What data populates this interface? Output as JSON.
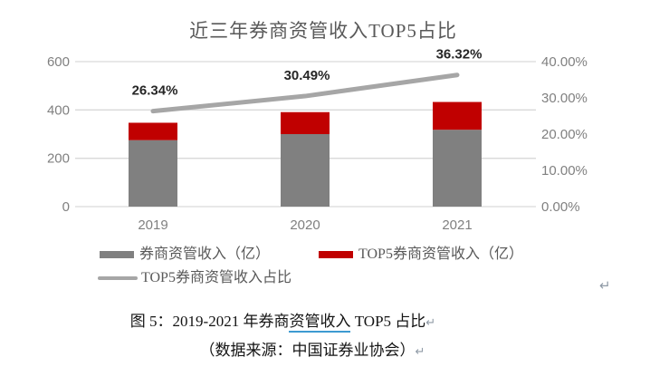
{
  "chart_data": {
    "type": "bar",
    "subtype": "stacked-bars-with-line-combo",
    "title": "近三年券商资管收入TOP5占比",
    "categories": [
      "2019",
      "2020",
      "2021"
    ],
    "bar_series": [
      {
        "name": "券商资管收入（亿）",
        "color": "#808080",
        "values": [
          275,
          300,
          318
        ]
      },
      {
        "name": "TOP5券商资管收入（亿）",
        "color": "#c00000",
        "values": [
          72,
          91,
          115
        ]
      }
    ],
    "line_series": {
      "name": "TOP5券商资管收入占比",
      "color": "#a6a6a6",
      "values": [
        26.34,
        30.49,
        36.32
      ],
      "labels": [
        "26.34%",
        "30.49%",
        "36.32%"
      ]
    },
    "stacked": true,
    "grid": true,
    "gridline_color": "#d9d9d9",
    "legend_position": "bottom",
    "left_axis": {
      "ticks": [
        600,
        400,
        200,
        0
      ],
      "min": 0,
      "max": 600
    },
    "right_axis": {
      "ticks": [
        "40.00%",
        "30.00%",
        "20.00%",
        "10.00%",
        "0.00%"
      ],
      "tick_values": [
        40,
        30,
        20,
        10,
        0
      ],
      "min": 0,
      "max": 40
    }
  },
  "caption": {
    "line1_prefix": "图 5：2019-2021 年券商",
    "line1_underlined": "资管收入",
    "line1_suffix": " TOP5 占比",
    "line2": "（数据来源：中国证券业协会）",
    "paragraph_mark": "↵"
  },
  "marks": {
    "return_mark": "↵"
  }
}
